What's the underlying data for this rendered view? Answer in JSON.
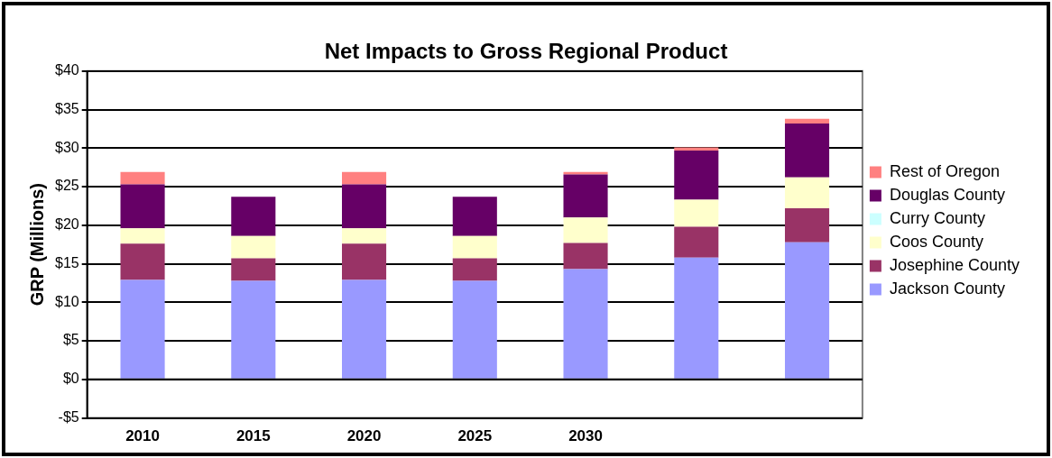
{
  "chart_data": {
    "type": "bar",
    "title": "Net Impacts to Gross Regional Product",
    "ylabel": "GRP (Millions)",
    "categories": [
      "2010",
      "2015",
      "2020",
      "2025",
      "2030",
      null,
      null
    ],
    "stacked": true,
    "legend": "right",
    "grid": "y",
    "ylim": [
      -5,
      40
    ],
    "yticks": [
      {
        "value": -5,
        "label": "-$5"
      },
      {
        "value": 0,
        "label": "$0"
      },
      {
        "value": 5,
        "label": "$5"
      },
      {
        "value": 10,
        "label": "$10"
      },
      {
        "value": 15,
        "label": "$15"
      },
      {
        "value": 20,
        "label": "$20"
      },
      {
        "value": 25,
        "label": "$25"
      },
      {
        "value": 30,
        "label": "$30"
      },
      {
        "value": 35,
        "label": "$35"
      },
      {
        "value": 40,
        "label": "$40"
      }
    ],
    "series": [
      {
        "name": "Jackson County",
        "color": "#9999ff",
        "values": [
          12.9,
          12.8,
          12.9,
          12.8,
          14.3,
          15.8,
          17.8
        ]
      },
      {
        "name": "Josephine County",
        "color": "#993366",
        "values": [
          4.7,
          2.9,
          4.7,
          2.9,
          3.4,
          4.0,
          4.4
        ]
      },
      {
        "name": "Coos County",
        "color": "#ffffcc",
        "values": [
          2.0,
          2.9,
          2.0,
          2.9,
          3.3,
          3.5,
          4.0
        ]
      },
      {
        "name": "Curry County",
        "color": "#ccffff",
        "values": [
          0,
          0,
          0,
          0,
          0,
          0,
          0
        ]
      },
      {
        "name": "Douglas County",
        "color": "#660066",
        "values": [
          5.7,
          5.1,
          5.7,
          5.1,
          5.6,
          6.4,
          7.0
        ]
      },
      {
        "name": "Rest of Oregon",
        "color": "#ff8080",
        "values": [
          1.6,
          0,
          1.6,
          0,
          0.3,
          0.4,
          0.6
        ]
      }
    ]
  }
}
